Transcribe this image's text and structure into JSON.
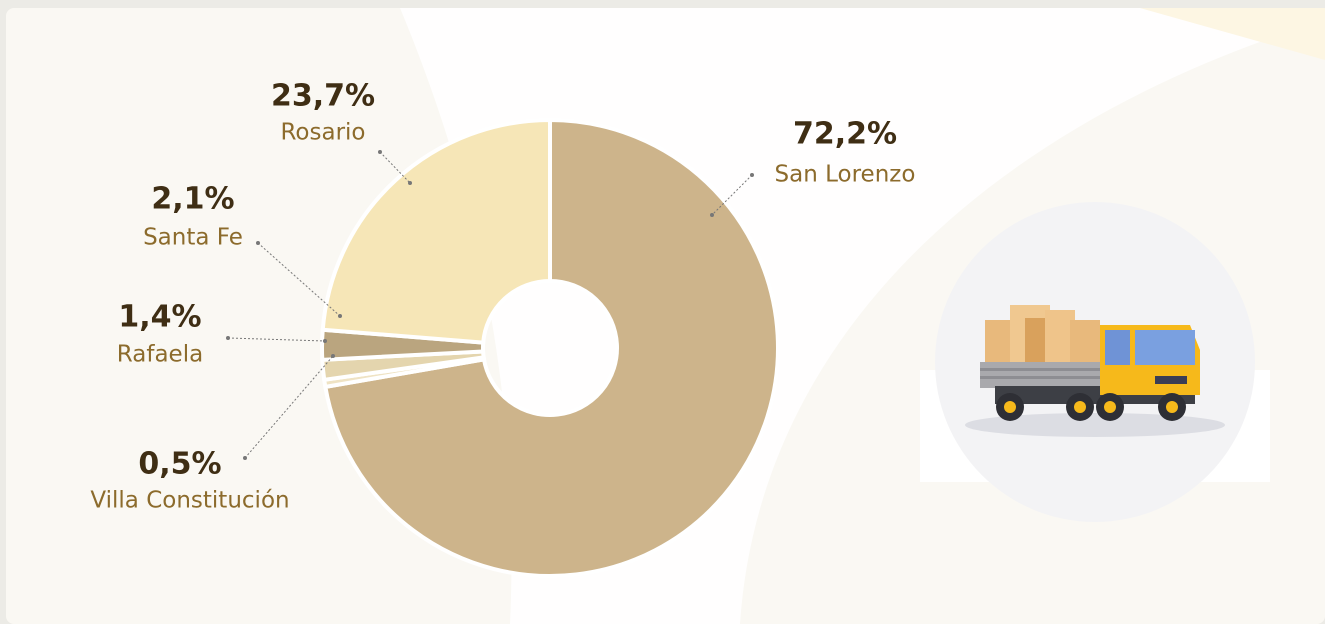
{
  "chart_data": {
    "type": "donut",
    "categories": [
      "San Lorenzo",
      "Villa Constitución",
      "Rafaela",
      "Santa Fe",
      "Rosario"
    ],
    "values": [
      72.2,
      0.5,
      1.4,
      2.1,
      23.7
    ],
    "value_labels": [
      "72,2%",
      "0,5%",
      "1,4%",
      "2,1%",
      "23,7%"
    ],
    "colors": [
      "#cdb48b",
      "#efe3c4",
      "#e4d5ae",
      "#baa57f",
      "#f6e6b7"
    ]
  }
}
